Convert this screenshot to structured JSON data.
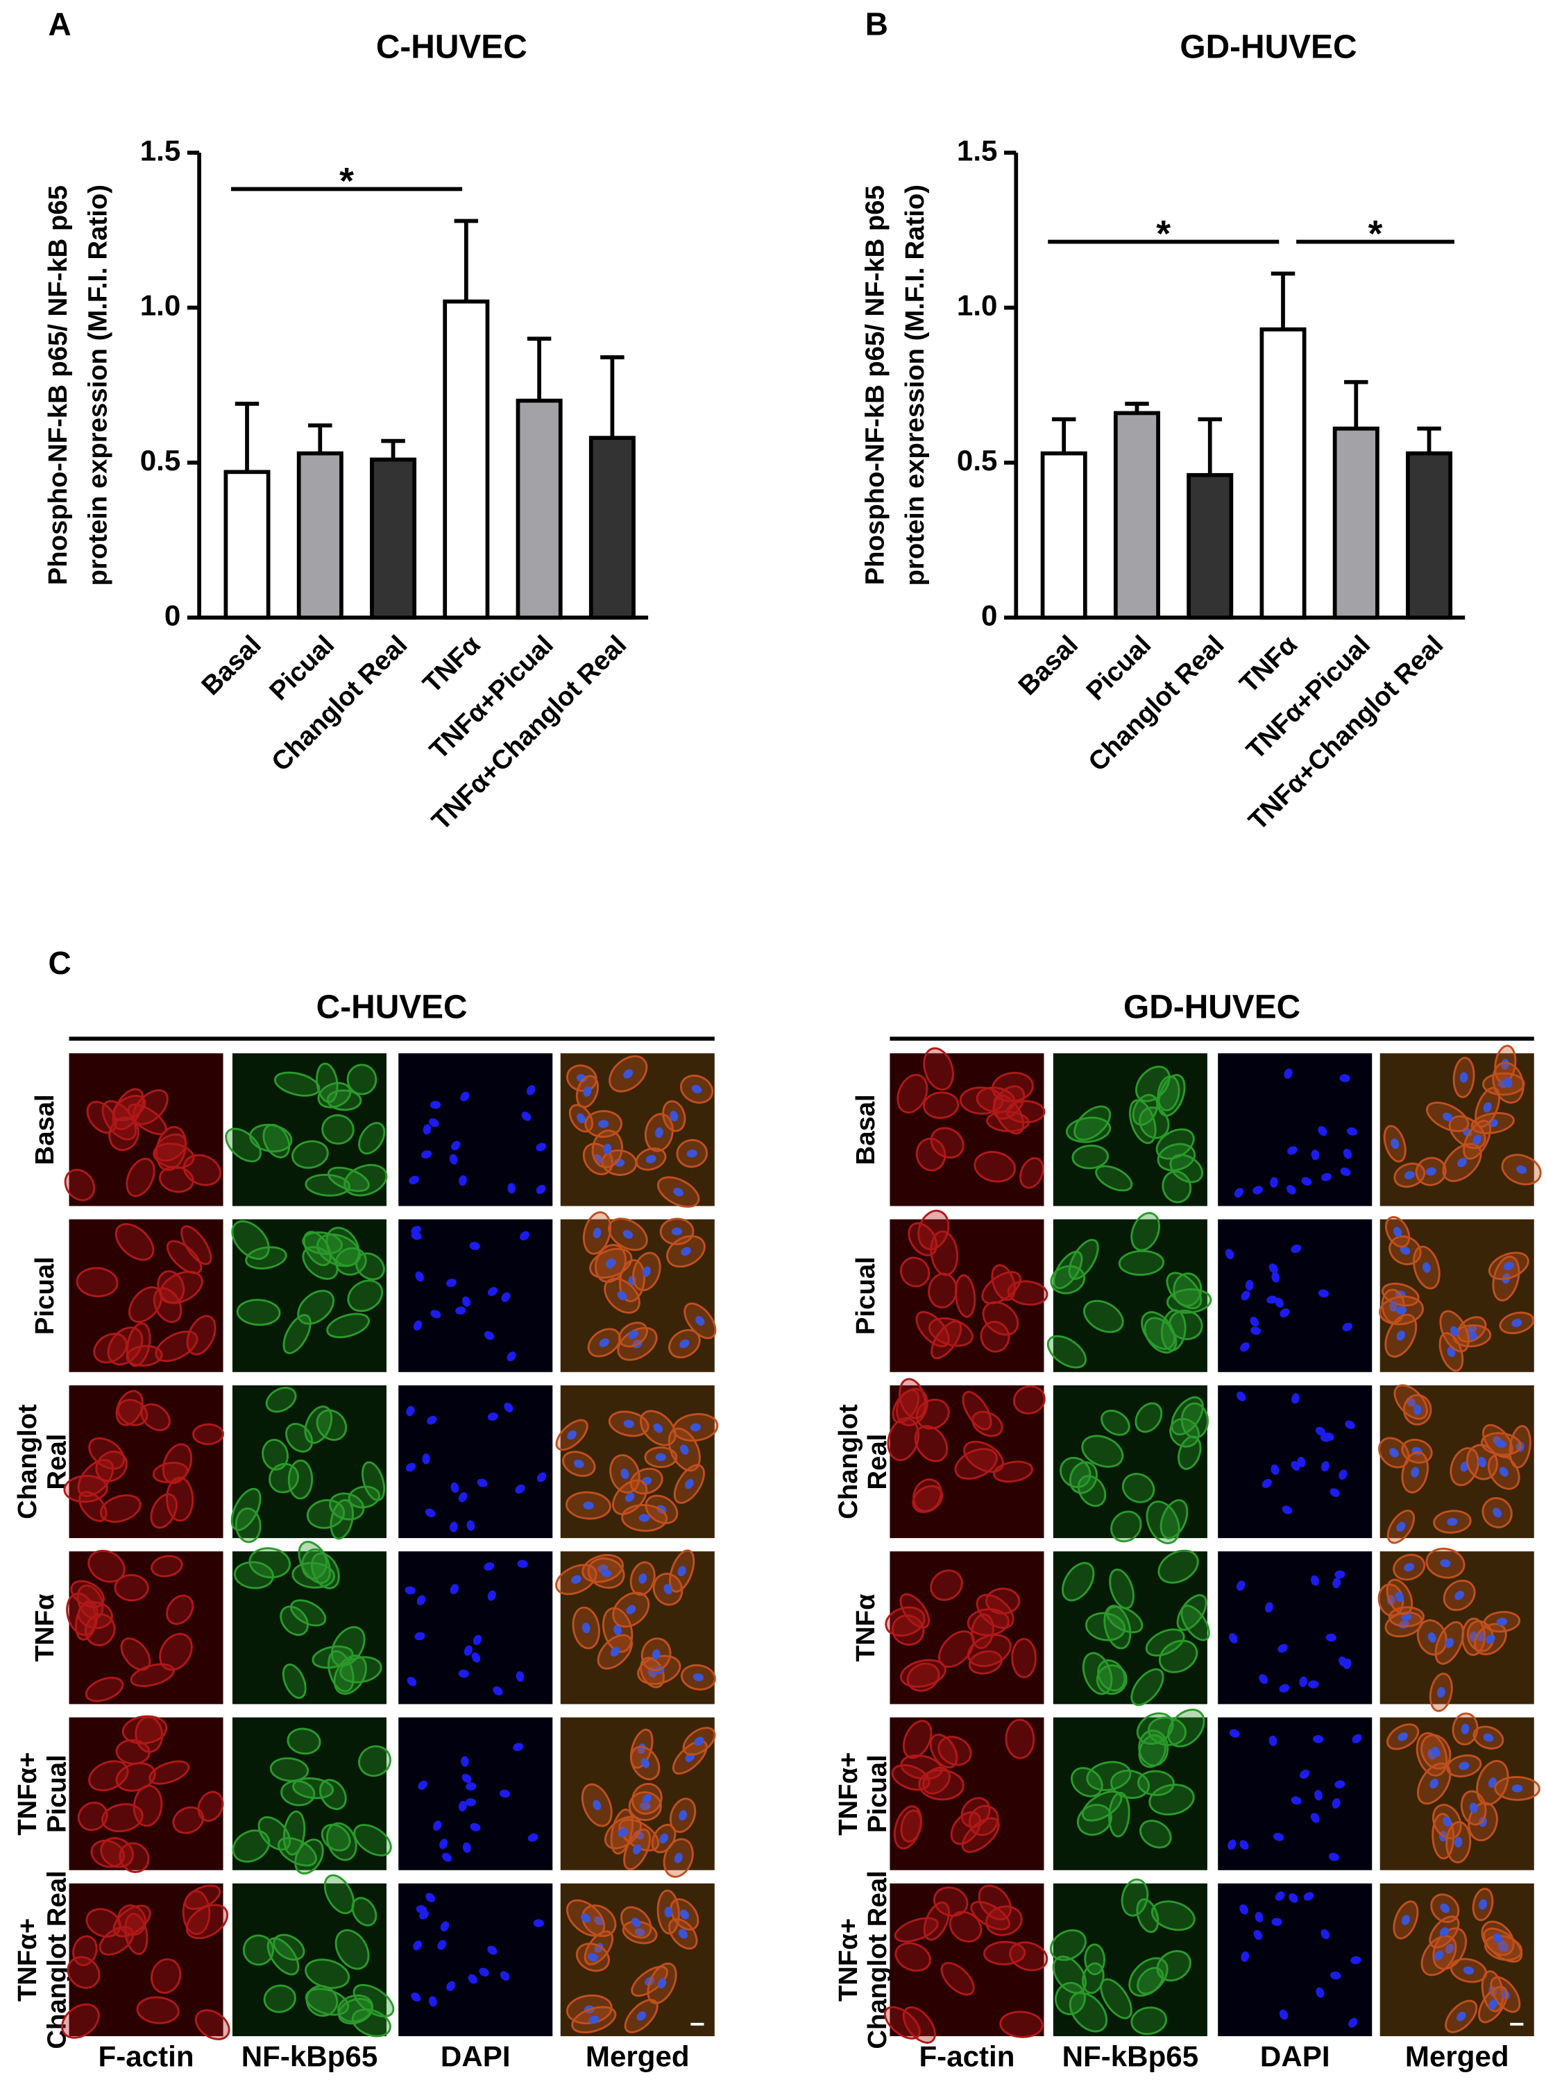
{
  "chart_data": [
    {
      "type": "bar",
      "panel_label": "A",
      "title": "C-HUVEC",
      "y_label": [
        "Phospho-NF-kB p65/ NF-kB p65",
        "protein expression (M.F.I. Ratio)"
      ],
      "categories": [
        "Basal",
        "Picual",
        "Changlot Real",
        "TNFα",
        "TNFα+Picual",
        "TNFα+Changlot Real"
      ],
      "values": [
        0.47,
        0.53,
        0.51,
        1.02,
        0.7,
        0.58
      ],
      "errors": [
        0.22,
        0.09,
        0.06,
        0.26,
        0.2,
        0.26
      ],
      "colors": [
        "#ffffff",
        "#a3a3a7",
        "#333333",
        "#ffffff",
        "#a3a3a7",
        "#333333"
      ],
      "ylim": [
        0,
        1.5
      ],
      "yticks": [
        0,
        0.5,
        {
          "value": 1,
          "label": "1.0"
        },
        1.5
      ],
      "significance": [
        {
          "label": "*",
          "from": 0,
          "to": 3
        }
      ]
    },
    {
      "type": "bar",
      "panel_label": "B",
      "title": "GD-HUVEC",
      "y_label": [
        "Phospho-NF-kB p65/ NF-kB p65",
        "protein expression (M.F.I. Ratio)"
      ],
      "categories": [
        "Basal",
        "Picual",
        "Changlot Real",
        "TNFα",
        "TNFα+Picual",
        "TNFα+Changlot Real"
      ],
      "values": [
        0.53,
        0.66,
        0.46,
        0.93,
        0.61,
        0.53
      ],
      "errors": [
        0.11,
        0.03,
        0.18,
        0.18,
        0.15,
        0.08
      ],
      "colors": [
        "#ffffff",
        "#a3a3a7",
        "#333333",
        "#ffffff",
        "#a3a3a7",
        "#333333"
      ],
      "ylim": [
        0,
        1.5
      ],
      "yticks": [
        0,
        0.5,
        {
          "value": 1,
          "label": "1.0"
        },
        1.5
      ],
      "significance": [
        {
          "label": "*",
          "from": 0,
          "to": 3
        },
        {
          "label": "*",
          "from": 3,
          "to": 5
        }
      ]
    }
  ],
  "panel_c": {
    "panel_label": "C",
    "panels": [
      {
        "title": "C-HUVEC",
        "rows": [
          [
            "Basal"
          ],
          [
            "Picual"
          ],
          [
            "Changlot",
            "Real"
          ],
          [
            "TNFα"
          ],
          [
            "TNFα+",
            "Picual"
          ],
          [
            "TNFα+",
            "Changlot Real"
          ]
        ],
        "columns": [
          "F-actin",
          "NF-kBp65",
          "DAPI",
          "Merged"
        ]
      },
      {
        "title": "GD-HUVEC",
        "rows": [
          [
            "Basal"
          ],
          [
            "Picual"
          ],
          [
            "Changlot",
            "Real"
          ],
          [
            "TNFα"
          ],
          [
            "TNFα+",
            "Picual"
          ],
          [
            "TNFα+",
            "Changlot Real"
          ]
        ],
        "columns": [
          "F-actin",
          "NF-kBp65",
          "DAPI",
          "Merged"
        ]
      }
    ]
  }
}
